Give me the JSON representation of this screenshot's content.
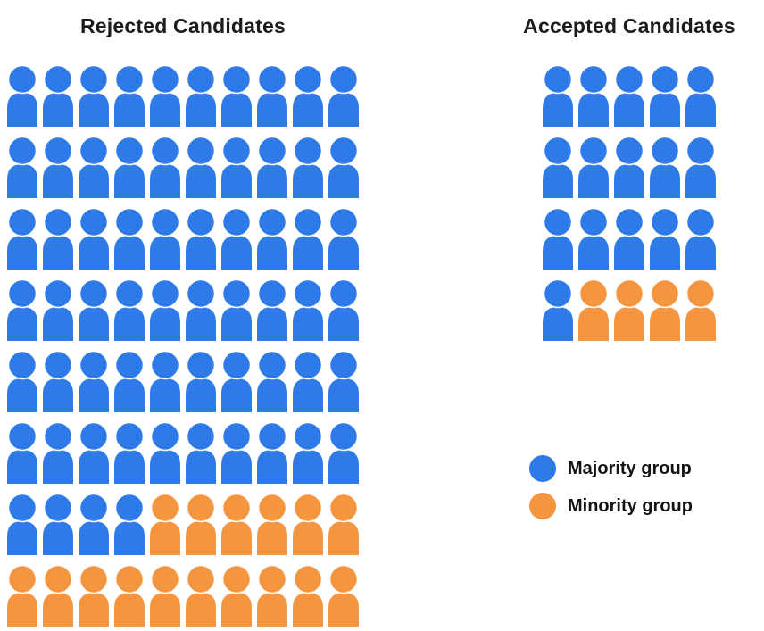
{
  "colors": {
    "majority": "#2D7AE8",
    "minority": "#F6953F",
    "title_text": "#1c1c1e"
  },
  "chart_data": [
    {
      "type": "pictogram",
      "title": "Rejected Candidates",
      "icon": "person",
      "columns": 10,
      "rows": [
        "MMMMMMMMMM",
        "MMMMMMMMMM",
        "MMMMMMMMMM",
        "MMMMMMMMMM",
        "MMMMMMMMMM",
        "MMMMMMMMMM",
        "MMMMmmmmmm",
        "mmmmmmmmmm"
      ],
      "counts": {
        "majority": 64,
        "minority": 16,
        "total": 80
      },
      "legend_key": {
        "M": "Majority group",
        "m": "Minority group"
      }
    },
    {
      "type": "pictogram",
      "title": "Accepted Candidates",
      "icon": "person",
      "columns": 5,
      "rows": [
        "MMMMM",
        "MMMMM",
        "MMMMM",
        "Mmmmm"
      ],
      "counts": {
        "majority": 16,
        "minority": 4,
        "total": 20
      },
      "legend_key": {
        "M": "Majority group",
        "m": "Minority group"
      }
    }
  ],
  "legend": {
    "items": [
      {
        "label": "Majority group",
        "color_key": "majority"
      },
      {
        "label": "Minority group",
        "color_key": "minority"
      }
    ]
  }
}
